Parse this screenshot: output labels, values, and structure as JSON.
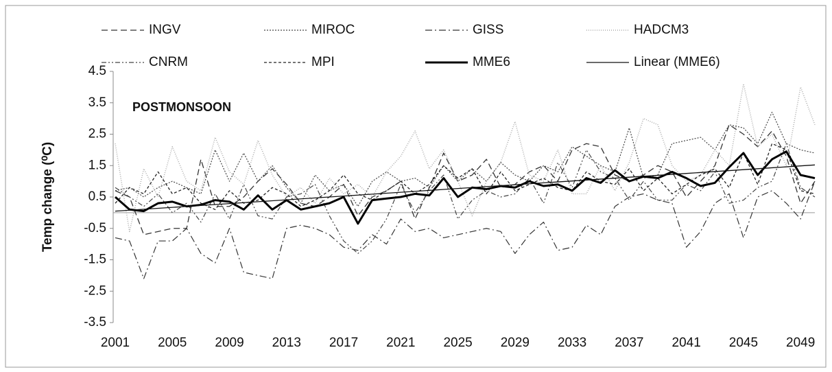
{
  "chart_data": {
    "type": "line",
    "annotation": "POSTMONSOON",
    "y_label": "Temp change (⁰C)",
    "x": [
      2001,
      2002,
      2003,
      2004,
      2005,
      2006,
      2007,
      2008,
      2009,
      2010,
      2011,
      2012,
      2013,
      2014,
      2015,
      2016,
      2017,
      2018,
      2019,
      2020,
      2021,
      2022,
      2023,
      2024,
      2025,
      2026,
      2027,
      2028,
      2029,
      2030,
      2031,
      2032,
      2033,
      2034,
      2035,
      2036,
      2037,
      2038,
      2039,
      2040,
      2041,
      2042,
      2043,
      2044,
      2045,
      2046,
      2047,
      2048,
      2049,
      2050
    ],
    "xlim": [
      2001,
      2050
    ],
    "xticks": [
      2001,
      2005,
      2009,
      2013,
      2017,
      2021,
      2025,
      2029,
      2033,
      2037,
      2041,
      2045,
      2049
    ],
    "ylim": [
      -3.5,
      4.5
    ],
    "yticks": [
      -3.5,
      -2.5,
      -1.5,
      -0.5,
      0.5,
      1.5,
      2.5,
      3.5,
      4.5
    ],
    "series": [
      {
        "name": "INGV",
        "color": "#333333",
        "dash": "9 5",
        "width": 1.3,
        "values": [
          0.7,
          0.5,
          -0.7,
          -0.6,
          -0.5,
          -0.5,
          1.7,
          0.2,
          0.2,
          0.5,
          1.0,
          1.4,
          0.9,
          0.3,
          0.2,
          0.5,
          0.9,
          -0.1,
          0.5,
          0.7,
          1.0,
          -0.2,
          0.8,
          1.9,
          1.0,
          1.2,
          1.7,
          0.8,
          0.9,
          1.3,
          1.5,
          1.0,
          2.0,
          2.2,
          2.1,
          1.2,
          1.0,
          1.2,
          1.5,
          1.3,
          0.5,
          1.0,
          1.5,
          2.8,
          2.5,
          2.1,
          2.6,
          1.8,
          0.3,
          1.0
        ]
      },
      {
        "name": "MIROC",
        "color": "#444444",
        "dash": "2 2",
        "width": 1.2,
        "values": [
          0.7,
          0.8,
          0.5,
          0.8,
          1.0,
          0.8,
          0.6,
          2.0,
          1.0,
          1.9,
          1.0,
          1.5,
          0.8,
          0.3,
          1.2,
          0.7,
          0.9,
          0.2,
          1.0,
          1.3,
          1.0,
          1.1,
          0.8,
          1.5,
          1.0,
          1.4,
          1.0,
          1.6,
          1.2,
          1.0,
          1.5,
          1.3,
          2.1,
          1.8,
          1.5,
          1.3,
          2.7,
          1.1,
          1.2,
          2.2,
          2.3,
          2.4,
          2.0,
          2.8,
          2.7,
          2.2,
          3.2,
          2.2,
          2.0,
          1.9
        ]
      },
      {
        "name": "GISS",
        "color": "#333333",
        "dash": "10 4 2 4",
        "width": 1.2,
        "values": [
          -0.8,
          -0.9,
          -2.1,
          -0.9,
          -0.9,
          -0.5,
          -1.3,
          -1.6,
          -0.5,
          -1.9,
          -2.0,
          -2.1,
          -0.5,
          -0.4,
          -0.5,
          -0.7,
          -1.1,
          -1.2,
          -0.7,
          -1.0,
          -0.2,
          -0.6,
          -0.5,
          -0.8,
          -0.7,
          -0.6,
          -0.5,
          -0.6,
          -1.3,
          -0.7,
          -0.3,
          -1.2,
          -1.1,
          -0.4,
          -0.7,
          0.2,
          0.5,
          0.6,
          0.4,
          0.3,
          -1.1,
          -0.6,
          0.3,
          0.6,
          -0.8,
          0.5,
          0.7,
          0.3,
          -0.2,
          1.0
        ]
      },
      {
        "name": "HADCM3",
        "color": "#aaaaaa",
        "dash": "1 2",
        "width": 1.5,
        "values": [
          2.2,
          -0.6,
          1.4,
          0.5,
          2.1,
          1.0,
          0.7,
          2.4,
          1.3,
          0.9,
          2.3,
          1.2,
          0.5,
          0.8,
          0.3,
          1.1,
          0.6,
          0.9,
          0.5,
          1.3,
          1.8,
          2.6,
          1.4,
          2.0,
          1.0,
          -0.1,
          1.0,
          1.6,
          2.9,
          1.2,
          1.0,
          2.0,
          0.6,
          0.6,
          1.5,
          0.7,
          1.6,
          3.0,
          2.8,
          1.5,
          1.0,
          1.2,
          2.0,
          1.5,
          4.1,
          2.1,
          2.5,
          1.5,
          4.0,
          2.8
        ]
      },
      {
        "name": "CNRM",
        "color": "#444444",
        "dash": "7 3 2 3 2 3",
        "width": 1.2,
        "values": [
          0.8,
          0.5,
          0.2,
          0.6,
          0.0,
          0.3,
          -0.3,
          0.6,
          -0.2,
          0.9,
          -0.1,
          -0.2,
          0.5,
          0.6,
          0.9,
          -0.1,
          -0.9,
          -1.3,
          -0.9,
          -0.2,
          0.9,
          0.0,
          0.7,
          1.2,
          -0.2,
          0.4,
          0.7,
          0.5,
          0.6,
          1.1,
          0.3,
          1.6,
          0.8,
          2.0,
          1.3,
          1.1,
          0.4,
          1.0,
          0.4,
          0.4,
          0.9,
          0.7,
          1.3,
          0.3,
          0.4,
          0.8,
          1.0,
          2.2,
          0.8,
          0.5
        ]
      },
      {
        "name": "MPI",
        "color": "#222222",
        "dash": "4 3",
        "width": 1.3,
        "values": [
          0.3,
          0.8,
          0.6,
          1.3,
          0.6,
          0.8,
          0.3,
          0.1,
          0.7,
          0.3,
          0.4,
          0.8,
          0.6,
          0.2,
          0.4,
          0.7,
          1.2,
          0.6,
          0.4,
          0.7,
          1.0,
          0.6,
          0.9,
          1.5,
          1.1,
          1.4,
          0.6,
          1.3,
          0.7,
          0.9,
          1.1,
          0.8,
          0.7,
          1.3,
          1.0,
          0.9,
          1.4,
          0.7,
          1.1,
          0.6,
          0.9,
          1.2,
          1.4,
          0.8,
          1.9,
          0.9,
          2.2,
          2.0,
          0.7,
          0.6
        ]
      },
      {
        "name": "MME6",
        "color": "#000000",
        "dash": "none",
        "width": 3,
        "values": [
          0.5,
          0.1,
          0.05,
          0.3,
          0.35,
          0.2,
          0.25,
          0.4,
          0.35,
          0.1,
          0.55,
          0.1,
          0.4,
          0.1,
          0.2,
          0.3,
          0.5,
          -0.35,
          0.4,
          0.45,
          0.5,
          0.6,
          0.55,
          1.1,
          0.5,
          0.8,
          0.75,
          0.85,
          0.8,
          1.0,
          0.85,
          0.9,
          0.7,
          1.1,
          0.95,
          1.35,
          1.0,
          1.15,
          1.1,
          1.3,
          1.1,
          0.85,
          0.95,
          1.45,
          1.9,
          1.2,
          1.7,
          1.95,
          1.2,
          1.1
        ]
      },
      {
        "name": "Linear (MME6)",
        "color": "#111111",
        "dash": "none",
        "width": 1.3,
        "values": [
          0.05,
          0.08,
          0.11,
          0.14,
          0.17,
          0.2,
          0.23,
          0.26,
          0.29,
          0.32,
          0.35,
          0.38,
          0.41,
          0.44,
          0.47,
          0.5,
          0.53,
          0.56,
          0.59,
          0.62,
          0.65,
          0.68,
          0.71,
          0.74,
          0.77,
          0.8,
          0.83,
          0.86,
          0.89,
          0.92,
          0.95,
          0.98,
          1.01,
          1.04,
          1.07,
          1.1,
          1.13,
          1.16,
          1.19,
          1.22,
          1.25,
          1.28,
          1.31,
          1.34,
          1.37,
          1.4,
          1.43,
          1.46,
          1.49,
          1.52
        ]
      }
    ]
  }
}
